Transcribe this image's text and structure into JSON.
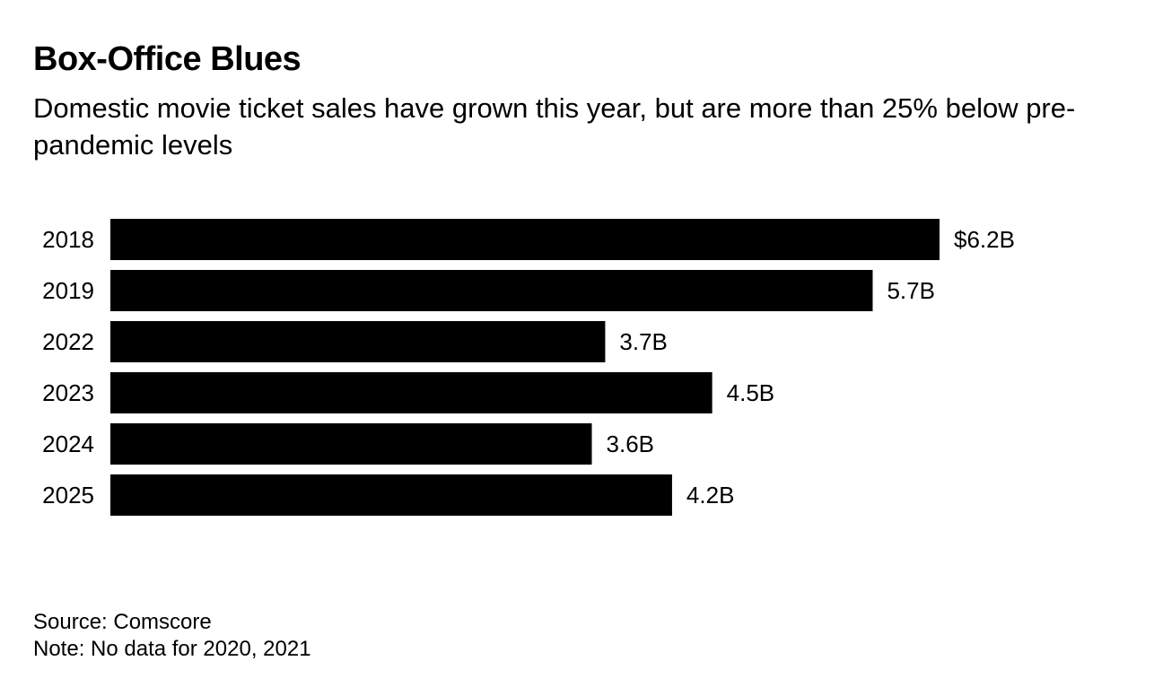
{
  "header": {
    "title": "Box-Office Blues",
    "subtitle": "Domestic movie ticket sales have grown this year, but are more than 25% below pre-pandemic levels"
  },
  "footer": {
    "source": "Source: Comscore",
    "note": "Note: No data for 2020, 2021"
  },
  "colors": {
    "bar": "#000000",
    "text": "#000000",
    "background": "#ffffff"
  },
  "chart_data": {
    "type": "bar",
    "orientation": "horizontal",
    "title": "Box-Office Blues",
    "subtitle": "Domestic movie ticket sales have grown this year, but are more than 25% below pre-pandemic levels",
    "categories": [
      "2018",
      "2019",
      "2022",
      "2023",
      "2024",
      "2025"
    ],
    "values": [
      6.2,
      5.7,
      3.7,
      4.5,
      3.6,
      4.2
    ],
    "value_labels": [
      "$6.2B",
      "5.7B",
      "3.7B",
      "4.5B",
      "3.6B",
      "4.2B"
    ],
    "unit": "billion USD",
    "xlim": [
      0,
      6.2
    ],
    "grid": false,
    "legend": "none"
  }
}
